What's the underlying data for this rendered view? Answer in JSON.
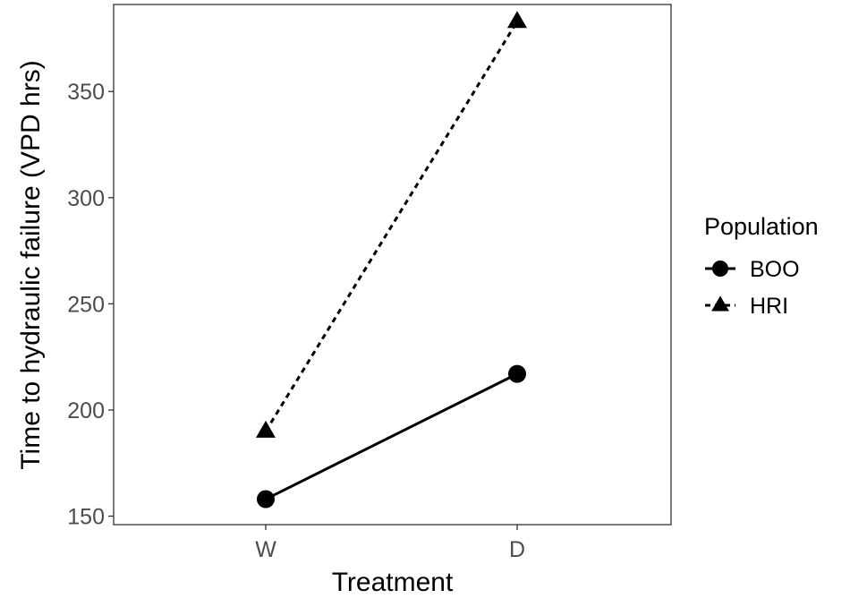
{
  "chart_data": {
    "type": "line",
    "xlabel": "Treatment",
    "ylabel": "Time to hydraulic failure (VPD hrs)",
    "categories": [
      "W",
      "D"
    ],
    "yticks": [
      150,
      200,
      250,
      300,
      350
    ],
    "ylim": [
      146,
      391
    ],
    "grid": false,
    "legend": {
      "title": "Population",
      "position": "right"
    },
    "series": [
      {
        "name": "BOO",
        "values": [
          158,
          217
        ],
        "marker": "circle",
        "line": "solid",
        "color": "#000000"
      },
      {
        "name": "HRI",
        "values": [
          190,
          383
        ],
        "marker": "triangle",
        "line": "dashed",
        "color": "#000000"
      }
    ]
  }
}
